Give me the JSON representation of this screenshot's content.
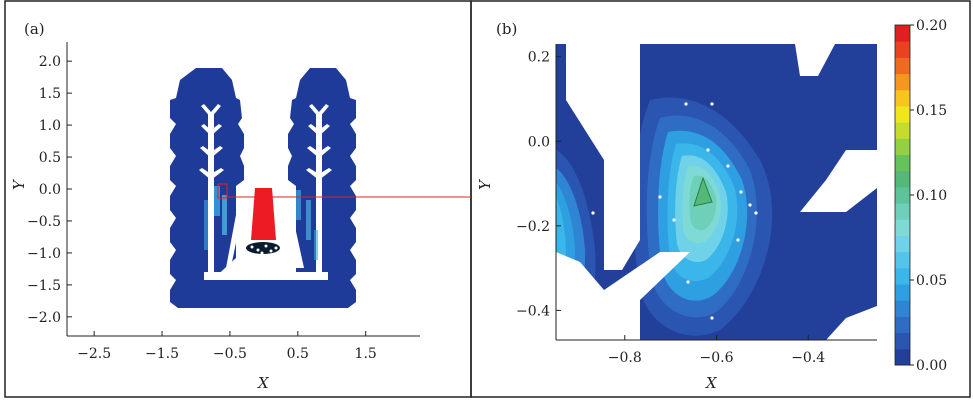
{
  "chart_data": [
    {
      "type": "heatmap",
      "panel_label": "(a)",
      "xlabel": "X",
      "ylabel": "Y",
      "xlim": [
        -2.9,
        2.3
      ],
      "ylim": [
        -2.3,
        2.3
      ],
      "x_ticks": [
        "−2.5",
        "−1.5",
        "−0.5",
        "0.5",
        "1.5"
      ],
      "x_tick_values": [
        -2.5,
        -1.5,
        -0.5,
        0.5,
        1.5
      ],
      "y_ticks": [
        "2.0",
        "1.5",
        "1.0",
        "0.5",
        "0.0",
        "−0.5",
        "−1.0",
        "−1.5",
        "−2.0"
      ],
      "y_tick_values": [
        2.0,
        1.5,
        1.0,
        0.5,
        0.0,
        -0.5,
        -1.0,
        -1.5,
        -2.0
      ],
      "zoom_region": {
        "x": [
          -0.75,
          -0.6
        ],
        "y": [
          -0.45,
          0.05
        ]
      }
    },
    {
      "type": "heatmap",
      "panel_label": "(b)",
      "xlabel": "X",
      "ylabel": "Y",
      "xlim": [
        -0.95,
        -0.25
      ],
      "ylim": [
        -0.47,
        0.23
      ],
      "x_ticks": [
        "−0.8",
        "−0.6",
        "−0.4"
      ],
      "x_tick_values": [
        -0.8,
        -0.6,
        -0.4
      ],
      "y_ticks": [
        "0.2",
        "0.0",
        "−0.2",
        "−0.4"
      ],
      "y_tick_values": [
        0.2,
        0.0,
        -0.2,
        -0.4
      ],
      "colorbar": {
        "min": 0.0,
        "max": 0.2,
        "ticks": [
          "0.20",
          "0.15",
          "0.10",
          "0.05",
          "0.00"
        ],
        "tick_values": [
          0.2,
          0.15,
          0.1,
          0.05,
          0.0
        ],
        "colors": [
          "#22409a",
          "#2a55b0",
          "#2f6cc4",
          "#2f85d4",
          "#2ea0e2",
          "#3ab6ea",
          "#52c5ec",
          "#6fd2e8",
          "#7fdad6",
          "#6ed0b8",
          "#5cc498",
          "#53b878",
          "#66c25a",
          "#93d042",
          "#c4dc2e",
          "#f0e61e",
          "#f8c41e",
          "#f5961e",
          "#ee6a1e",
          "#e8421e",
          "#e02020"
        ]
      },
      "contour_peak": {
        "x": -0.62,
        "y": -0.13,
        "value": 0.1
      }
    }
  ]
}
